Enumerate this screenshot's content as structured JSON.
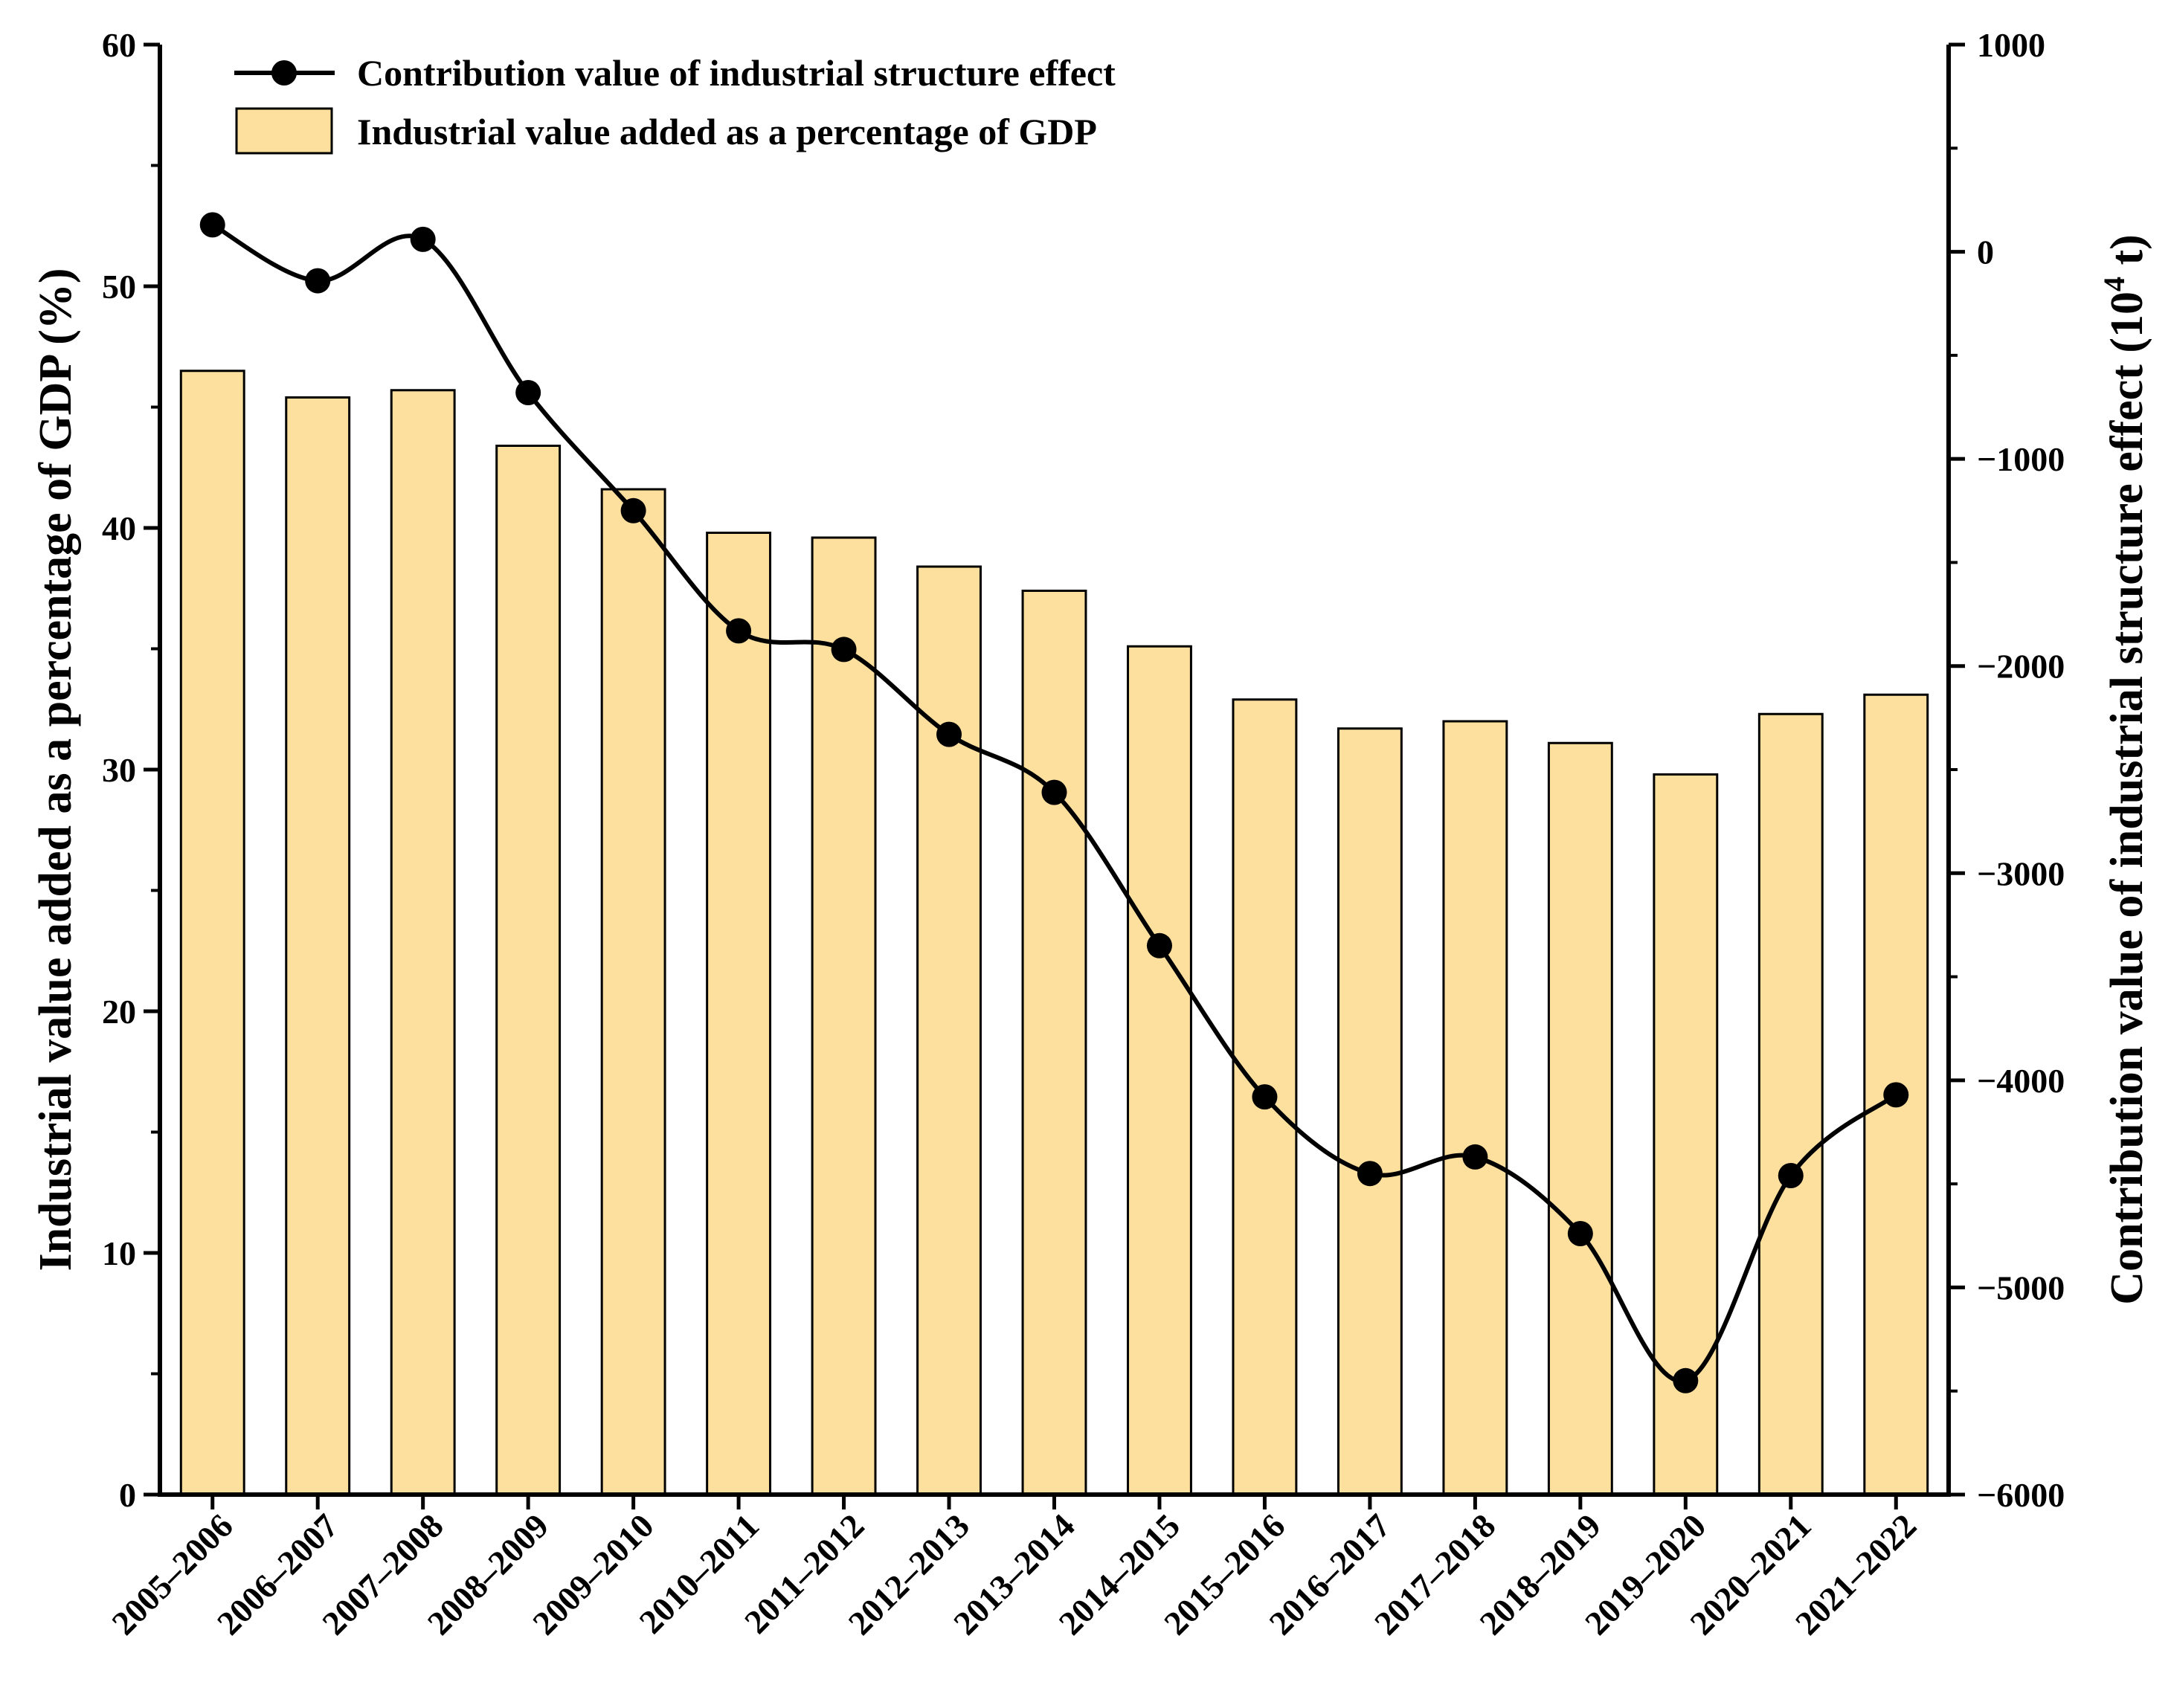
{
  "chart_data": {
    "type": "bar",
    "categories": [
      "2005–2006",
      "2006–2007",
      "2007–2008",
      "2008–2009",
      "2009–2010",
      "2010–2011",
      "2011–2012",
      "2012–2013",
      "2013–2014",
      "2014–2015",
      "2015–2016",
      "2016–2017",
      "2017–2018",
      "2018–2019",
      "2019–2020",
      "2020–2021",
      "2021–2022"
    ],
    "series": [
      {
        "name": "Industrial value added as a percentage of GDP",
        "type": "bar",
        "axis": "left",
        "color": "#FDDF9E",
        "values": [
          46.5,
          45.4,
          45.7,
          43.4,
          41.6,
          39.8,
          39.6,
          38.4,
          37.4,
          35.1,
          32.9,
          31.7,
          32.0,
          31.1,
          29.8,
          32.3,
          33.1
        ]
      },
      {
        "name": "Contribution value of industrial structure effect",
        "type": "line",
        "axis": "right",
        "color": "#000000",
        "values": [
          130,
          -140,
          60,
          -680,
          -1250,
          -1830,
          -1920,
          -2330,
          -2610,
          -3350,
          -4080,
          -4450,
          -4370,
          -4740,
          -5450,
          -4460,
          -4070
        ]
      }
    ],
    "ylabel": "Industrial value added as a percentage of GDP (%)",
    "ylabel_right": "Contribution value of industrial structure effect (10",
    "ylabel_right_sup": "4",
    "ylabel_right_tail": " t)",
    "ylim": [
      0,
      60
    ],
    "yticks": [
      0,
      10,
      20,
      30,
      40,
      50,
      60
    ],
    "ylim_right": [
      -6000,
      1000
    ],
    "yticks_right": [
      -6000,
      -5000,
      -4000,
      -3000,
      -2000,
      -1000,
      0,
      1000
    ],
    "yticks_right_labels": [
      "−6000",
      "−5000",
      "−4000",
      "−3000",
      "−2000",
      "−1000",
      "0",
      "1000"
    ],
    "grid": false,
    "legend_position": "top-left"
  }
}
